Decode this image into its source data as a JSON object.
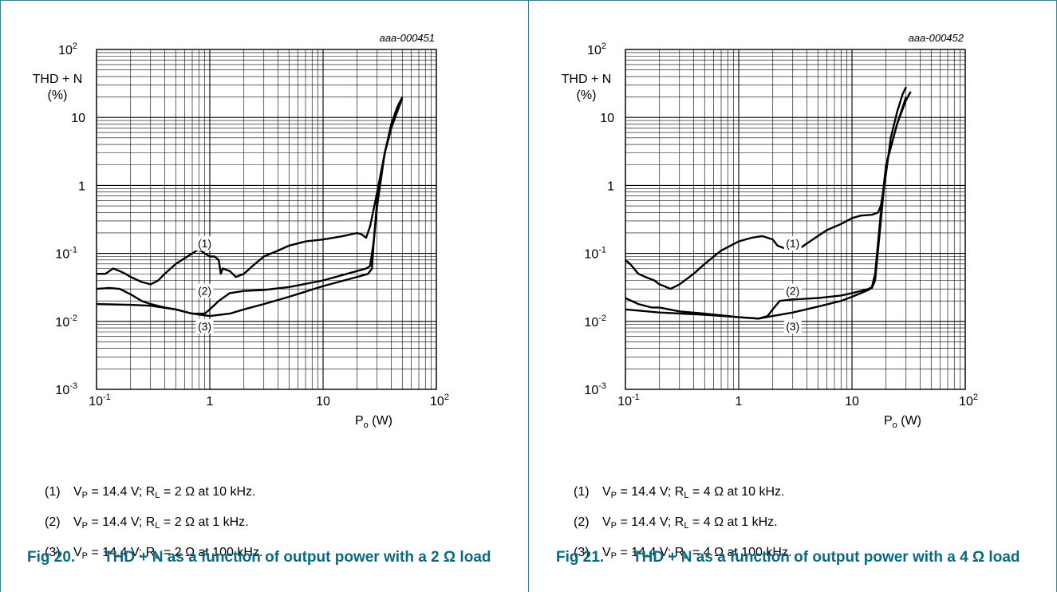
{
  "chart_data": [
    {
      "type": "line",
      "figure_id": "aaa-000451",
      "ylabel_line1": "THD + N",
      "ylabel_line2": "(%)",
      "xlabel_main": "P",
      "xlabel_sub": "o",
      "xlabel_unit": " (W)",
      "x_scale": "log",
      "y_scale": "log",
      "xlim": [
        0.1,
        100
      ],
      "ylim": [
        0.001,
        100
      ],
      "grid": true,
      "xticks": [
        {
          "value": 0.1,
          "base": "10",
          "exp": "-1"
        },
        {
          "value": 1,
          "base": "1",
          "exp": ""
        },
        {
          "value": 10,
          "base": "10",
          "exp": ""
        },
        {
          "value": 100,
          "base": "10",
          "exp": "2"
        }
      ],
      "yticks": [
        {
          "value": 100,
          "base": "10",
          "exp": "2"
        },
        {
          "value": 10,
          "base": "10",
          "exp": ""
        },
        {
          "value": 1,
          "base": "1",
          "exp": ""
        },
        {
          "value": 0.1,
          "base": "10",
          "exp": "-1"
        },
        {
          "value": 0.01,
          "base": "10",
          "exp": "-2"
        },
        {
          "value": 0.001,
          "base": "10",
          "exp": "-3"
        }
      ],
      "series": [
        {
          "name": "(1)",
          "label_at": [
            0.9,
            0.14
          ],
          "x": [
            0.1,
            0.12,
            0.14,
            0.16,
            0.18,
            0.2,
            0.25,
            0.3,
            0.35,
            0.4,
            0.5,
            0.6,
            0.7,
            0.8,
            0.9,
            1.0,
            1.1,
            1.2,
            1.25,
            1.3,
            1.5,
            1.7,
            2.0,
            2.5,
            3,
            4,
            5,
            7,
            10,
            15,
            20,
            22,
            24,
            26,
            28,
            30,
            35,
            40,
            45,
            50
          ],
          "y": [
            0.05,
            0.05,
            0.06,
            0.055,
            0.05,
            0.045,
            0.038,
            0.035,
            0.04,
            0.05,
            0.07,
            0.085,
            0.1,
            0.115,
            0.1,
            0.09,
            0.09,
            0.08,
            0.05,
            0.06,
            0.055,
            0.045,
            0.05,
            0.07,
            0.09,
            0.11,
            0.13,
            0.15,
            0.16,
            0.18,
            0.2,
            0.19,
            0.17,
            0.25,
            0.45,
            0.8,
            3,
            8,
            14,
            20
          ]
        },
        {
          "name": "(2)",
          "label_at": [
            0.9,
            0.028
          ],
          "x": [
            0.1,
            0.13,
            0.16,
            0.2,
            0.25,
            0.3,
            0.4,
            0.5,
            0.7,
            0.9,
            1.0,
            1.2,
            1.5,
            2,
            3,
            5,
            10,
            20,
            24,
            26,
            28,
            30,
            35,
            40,
            45,
            50
          ],
          "y": [
            0.03,
            0.031,
            0.03,
            0.025,
            0.02,
            0.018,
            0.016,
            0.015,
            0.013,
            0.013,
            0.015,
            0.02,
            0.026,
            0.028,
            0.029,
            0.032,
            0.04,
            0.055,
            0.06,
            0.065,
            0.15,
            0.5,
            3,
            7,
            13,
            19
          ]
        },
        {
          "name": "(3)",
          "label_at": [
            0.9,
            0.0085
          ],
          "x": [
            0.1,
            0.2,
            0.3,
            0.5,
            0.7,
            1,
            1.5,
            2,
            3,
            5,
            10,
            20,
            25,
            27,
            28,
            30,
            35,
            40,
            45,
            50
          ],
          "y": [
            0.018,
            0.0175,
            0.017,
            0.015,
            0.013,
            0.012,
            0.013,
            0.015,
            0.018,
            0.023,
            0.033,
            0.045,
            0.05,
            0.06,
            0.15,
            0.6,
            3,
            7,
            12,
            19
          ]
        }
      ]
    },
    {
      "type": "line",
      "figure_id": "aaa-000452",
      "ylabel_line1": "THD + N",
      "ylabel_line2": "(%)",
      "xlabel_main": "P",
      "xlabel_sub": "o",
      "xlabel_unit": " (W)",
      "x_scale": "log",
      "y_scale": "log",
      "xlim": [
        0.1,
        100
      ],
      "ylim": [
        0.001,
        100
      ],
      "grid": true,
      "xticks": [
        {
          "value": 0.1,
          "base": "10",
          "exp": "-1"
        },
        {
          "value": 1,
          "base": "1",
          "exp": ""
        },
        {
          "value": 10,
          "base": "10",
          "exp": ""
        },
        {
          "value": 100,
          "base": "10",
          "exp": "2"
        }
      ],
      "yticks": [
        {
          "value": 100,
          "base": "10",
          "exp": "2"
        },
        {
          "value": 10,
          "base": "10",
          "exp": ""
        },
        {
          "value": 1,
          "base": "1",
          "exp": ""
        },
        {
          "value": 0.1,
          "base": "10",
          "exp": "-1"
        },
        {
          "value": 0.01,
          "base": "10",
          "exp": "-2"
        },
        {
          "value": 0.001,
          "base": "10",
          "exp": "-3"
        }
      ],
      "series": [
        {
          "name": "(1)",
          "label_at": [
            3,
            0.14
          ],
          "x": [
            0.1,
            0.11,
            0.13,
            0.15,
            0.18,
            0.2,
            0.22,
            0.25,
            0.3,
            0.4,
            0.5,
            0.7,
            1.0,
            1.3,
            1.6,
            1.8,
            2.0,
            2.2,
            2.5,
            3,
            3.5,
            4,
            5,
            6,
            8,
            10,
            12,
            15,
            17,
            18,
            20,
            22,
            25,
            28,
            30
          ],
          "y": [
            0.08,
            0.07,
            0.05,
            0.045,
            0.04,
            0.035,
            0.033,
            0.03,
            0.035,
            0.05,
            0.07,
            0.11,
            0.15,
            0.17,
            0.18,
            0.17,
            0.16,
            0.13,
            0.12,
            0.115,
            0.12,
            0.14,
            0.18,
            0.22,
            0.27,
            0.33,
            0.36,
            0.37,
            0.4,
            0.5,
            1.5,
            5,
            12,
            22,
            28
          ]
        },
        {
          "name": "(2)",
          "label_at": [
            3,
            0.028
          ],
          "x": [
            0.1,
            0.13,
            0.17,
            0.2,
            0.3,
            0.5,
            0.8,
            1.0,
            1.5,
            1.8,
            2.0,
            2.3,
            3,
            5,
            8,
            10,
            12,
            14,
            15,
            16,
            18,
            20,
            25,
            30
          ],
          "y": [
            0.022,
            0.018,
            0.016,
            0.016,
            0.014,
            0.013,
            0.012,
            0.0115,
            0.011,
            0.012,
            0.015,
            0.02,
            0.021,
            0.022,
            0.024,
            0.026,
            0.028,
            0.03,
            0.032,
            0.05,
            0.4,
            2,
            8,
            20
          ]
        },
        {
          "name": "(3)",
          "label_at": [
            3,
            0.0085
          ],
          "x": [
            0.1,
            0.2,
            0.5,
            1.0,
            1.5,
            2,
            3,
            5,
            8,
            10,
            12,
            14,
            15,
            16,
            18,
            20,
            25,
            30,
            33
          ],
          "y": [
            0.015,
            0.0135,
            0.0125,
            0.0115,
            0.011,
            0.012,
            0.0135,
            0.0165,
            0.02,
            0.023,
            0.026,
            0.029,
            0.031,
            0.04,
            0.3,
            2,
            8,
            18,
            24
          ]
        }
      ]
    }
  ],
  "figures": [
    {
      "legend": [
        {
          "num": "(1)",
          "vp": "V",
          "vp_sub": "P",
          "vp_val": " = 14.4 V; R",
          "rl_sub": "L",
          "rest": " = 2 Ω at 10 kHz."
        },
        {
          "num": "(2)",
          "vp": "V",
          "vp_sub": "P",
          "vp_val": " = 14.4 V; R",
          "rl_sub": "L",
          "rest": " = 2 Ω at 1 kHz."
        },
        {
          "num": "(3)",
          "vp": "V",
          "vp_sub": "P",
          "vp_val": " = 14.4 V; R",
          "rl_sub": "L",
          "rest": " = 2 Ω at 100 kHz."
        }
      ],
      "caption_label": "Fig 20.",
      "caption_title": "THD + N as a function of output power with a 2 Ω load"
    },
    {
      "legend": [
        {
          "num": "(1)",
          "vp": "V",
          "vp_sub": "P",
          "vp_val": " = 14.4 V; R",
          "rl_sub": "L",
          "rest": " = 4 Ω at 10 kHz."
        },
        {
          "num": "(2)",
          "vp": "V",
          "vp_sub": "P",
          "vp_val": " = 14.4 V; R",
          "rl_sub": "L",
          "rest": " = 4 Ω at 1 kHz."
        },
        {
          "num": "(3)",
          "vp": "V",
          "vp_sub": "P",
          "vp_val": " = 14.4 V; R",
          "rl_sub": "L",
          "rest": " = 4 Ω at 100 kHz."
        }
      ],
      "caption_label": "Fig 21.",
      "caption_title": "THD + N as a function of output power with a 4 Ω load"
    }
  ]
}
